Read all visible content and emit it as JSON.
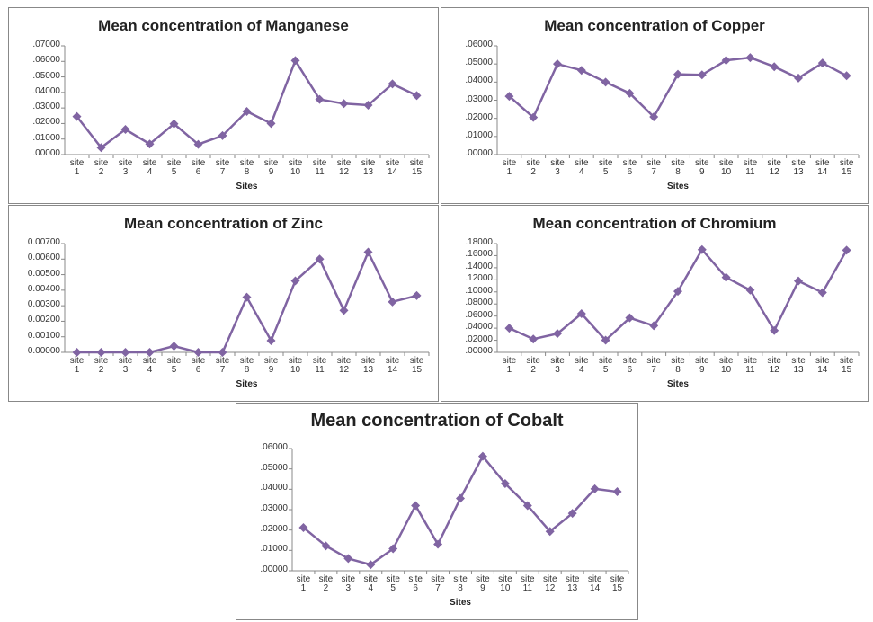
{
  "chart_data": [
    {
      "type": "line",
      "title": "Mean concentration of Manganese",
      "x_label": "Sites",
      "color": "#8064a2",
      "categories": [
        "site 1",
        "site 2",
        "site 3",
        "site 4",
        "site 5",
        "site 6",
        "site 7",
        "site 8",
        "site 9",
        "site 10",
        "site 11",
        "site 12",
        "site 13",
        "site 14",
        "site 15"
      ],
      "values": [
        0.0245,
        0.0045,
        0.0162,
        0.0068,
        0.0198,
        0.0066,
        0.0122,
        0.0278,
        0.02,
        0.0605,
        0.0355,
        0.0328,
        0.0318,
        0.0455,
        0.038
      ],
      "ylim": [
        0,
        0.07
      ],
      "yticks": [
        {
          "value": 0,
          "label": ".00000"
        },
        {
          "value": 0.01,
          "label": ".01000"
        },
        {
          "value": 0.02,
          "label": ".02000"
        },
        {
          "value": 0.03,
          "label": ".03000"
        },
        {
          "value": 0.04,
          "label": ".04000"
        },
        {
          "value": 0.05,
          "label": ".05000"
        },
        {
          "value": 0.06,
          "label": ".06000"
        },
        {
          "value": 0.07,
          "label": ".07000"
        }
      ]
    },
    {
      "type": "line",
      "title": "Mean concentration of Copper",
      "x_label": "Sites",
      "color": "#8064a2",
      "categories": [
        "site 1",
        "site 2",
        "site 3",
        "site 4",
        "site 5",
        "site 6",
        "site 7",
        "site 8",
        "site 9",
        "site 10",
        "site 11",
        "site 12",
        "site 13",
        "site 14",
        "site 15"
      ],
      "values": [
        0.0322,
        0.0205,
        0.05,
        0.0465,
        0.04,
        0.0338,
        0.0208,
        0.0443,
        0.044,
        0.052,
        0.0535,
        0.0485,
        0.0422,
        0.0505,
        0.0435
      ],
      "ylim": [
        0,
        0.06
      ],
      "yticks": [
        {
          "value": 0,
          "label": ".00000"
        },
        {
          "value": 0.01,
          "label": ".01000"
        },
        {
          "value": 0.02,
          "label": ".02000"
        },
        {
          "value": 0.03,
          "label": ".03000"
        },
        {
          "value": 0.04,
          "label": ".04000"
        },
        {
          "value": 0.05,
          "label": ".05000"
        },
        {
          "value": 0.06,
          "label": ".06000"
        }
      ]
    },
    {
      "type": "line",
      "title": "Mean concentration of Zinc",
      "x_label": "Sites",
      "color": "#8064a2",
      "categories": [
        "site 1",
        "site 2",
        "site 3",
        "site 4",
        "site 5",
        "site 6",
        "site 7",
        "site 8",
        "site 9",
        "site 10",
        "site 11",
        "site 12",
        "site 13",
        "site 14",
        "site 15"
      ],
      "values": [
        0,
        0,
        0,
        0,
        0.0004,
        0,
        0,
        0.00355,
        0.00075,
        0.0046,
        0.006,
        0.0027,
        0.00645,
        0.00325,
        0.00365
      ],
      "ylim": [
        0,
        0.007
      ],
      "yticks": [
        {
          "value": 0,
          "label": "0.00000"
        },
        {
          "value": 0.001,
          "label": "0.00100"
        },
        {
          "value": 0.002,
          "label": "0.00200"
        },
        {
          "value": 0.003,
          "label": "0.00300"
        },
        {
          "value": 0.004,
          "label": "0.00400"
        },
        {
          "value": 0.005,
          "label": "0.00500"
        },
        {
          "value": 0.006,
          "label": "0.00600"
        },
        {
          "value": 0.007,
          "label": "0.00700"
        }
      ]
    },
    {
      "type": "line",
      "title": "Mean concentration of Chromium",
      "x_label": "Sites",
      "color": "#8064a2",
      "categories": [
        "site 1",
        "site 2",
        "site 3",
        "site 4",
        "site 5",
        "site 6",
        "site 7",
        "site 8",
        "site 9",
        "site 10",
        "site 11",
        "site 12",
        "site 13",
        "site 14",
        "site 15"
      ],
      "values": [
        0.04,
        0.022,
        0.031,
        0.064,
        0.02,
        0.057,
        0.044,
        0.101,
        0.17,
        0.124,
        0.103,
        0.036,
        0.118,
        0.099,
        0.169
      ],
      "ylim": [
        0,
        0.18
      ],
      "yticks": [
        {
          "value": 0,
          "label": ".00000"
        },
        {
          "value": 0.02,
          "label": ".02000"
        },
        {
          "value": 0.04,
          "label": ".04000"
        },
        {
          "value": 0.06,
          "label": ".06000"
        },
        {
          "value": 0.08,
          "label": ".08000"
        },
        {
          "value": 0.1,
          "label": ".10000"
        },
        {
          "value": 0.12,
          "label": ".12000"
        },
        {
          "value": 0.14,
          "label": ".14000"
        },
        {
          "value": 0.16,
          "label": ".16000"
        },
        {
          "value": 0.18,
          "label": ".18000"
        }
      ]
    },
    {
      "type": "line",
      "title": "Mean concentration of Cobalt",
      "x_label": "Sites",
      "color": "#8064a2",
      "categories": [
        "site 1",
        "site 2",
        "site 3",
        "site 4",
        "site 5",
        "site 6",
        "site 7",
        "site 8",
        "site 9",
        "site 10",
        "site 11",
        "site 12",
        "site 13",
        "site 14",
        "site 15"
      ],
      "values": [
        0.0212,
        0.0122,
        0.006,
        0.003,
        0.0108,
        0.032,
        0.013,
        0.0355,
        0.0562,
        0.0428,
        0.032,
        0.0193,
        0.0282,
        0.0402,
        0.0388
      ],
      "ylim": [
        0,
        0.06
      ],
      "yticks": [
        {
          "value": 0,
          "label": ".00000"
        },
        {
          "value": 0.01,
          "label": ".01000"
        },
        {
          "value": 0.02,
          "label": ".02000"
        },
        {
          "value": 0.03,
          "label": ".03000"
        },
        {
          "value": 0.04,
          "label": ".04000"
        },
        {
          "value": 0.05,
          "label": ".05000"
        },
        {
          "value": 0.06,
          "label": ".06000"
        }
      ]
    }
  ]
}
